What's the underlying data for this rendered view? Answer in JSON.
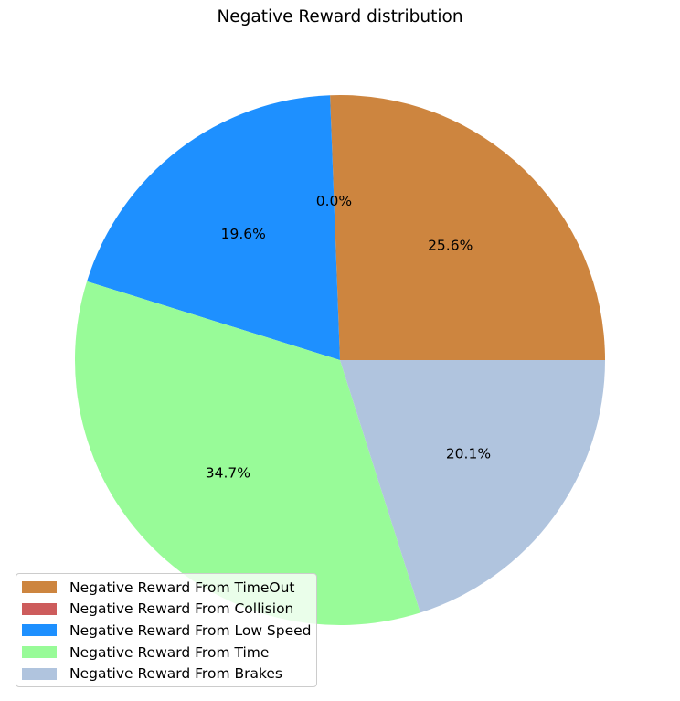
{
  "chart_data": {
    "type": "pie",
    "title": "Negative Reward distribution",
    "slices": [
      {
        "label": "Negative Reward From TimeOut",
        "percent": 25.6,
        "pct_label": "25.6%",
        "color": "#CD853F"
      },
      {
        "label": "Negative Reward From Collision",
        "percent": 0.0,
        "pct_label": "0.0%",
        "color": "#CD5C5C"
      },
      {
        "label": "Negative Reward From Low Speed",
        "percent": 19.6,
        "pct_label": "19.6%",
        "color": "#1E90FF"
      },
      {
        "label": "Negative Reward From Time",
        "percent": 34.7,
        "pct_label": "34.7%",
        "color": "#98FB98"
      },
      {
        "label": "Negative Reward From Brakes",
        "percent": 20.1,
        "pct_label": "20.1%",
        "color": "#B0C4DE"
      }
    ],
    "start_angle": 0,
    "direction": "counterclockwise",
    "legend_position": "lower-left"
  }
}
